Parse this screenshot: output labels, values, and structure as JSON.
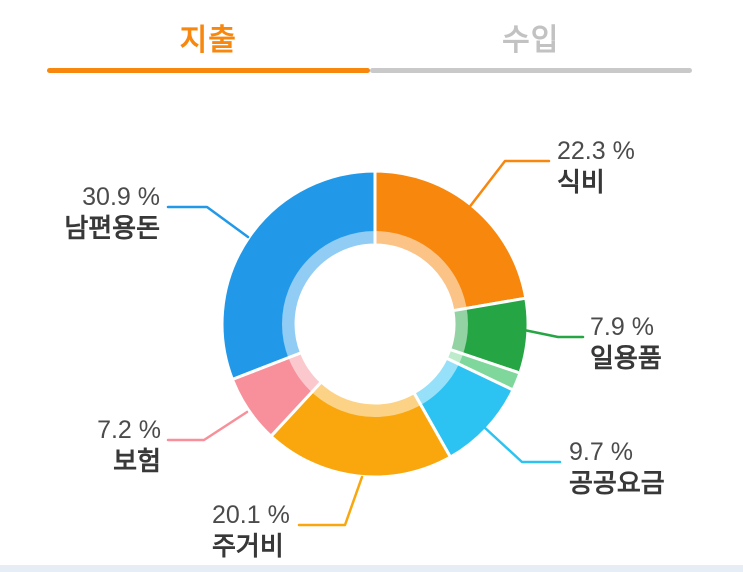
{
  "tabs": [
    {
      "label": "지출",
      "active": true
    },
    {
      "label": "수입",
      "active": false
    }
  ],
  "theme": {
    "accent": "#f8870d",
    "inactive_tab": "#c2c2c2",
    "tab_underline_inactive": "#c9c9c9",
    "pct_text": "#4b4b4b",
    "name_text": "#383838",
    "footer_strip": "#e7edf4",
    "slice_gap": "#ffffff"
  },
  "chart_data": {
    "type": "pie",
    "subtype": "donut",
    "title": "",
    "start_angle_deg": 0,
    "direction": "clockwise",
    "label_format": "{value} %",
    "legend_position": "callout-labels",
    "series": [
      {
        "label": "식비",
        "value": 22.3,
        "color": "#f8870d"
      },
      {
        "label": "일용품",
        "value": 7.9,
        "color": "#26a544"
      },
      {
        "label": "",
        "value": 1.9,
        "color": "#7fd79b"
      },
      {
        "label": "공공요금",
        "value": 9.7,
        "color": "#2cc3f2"
      },
      {
        "label": "주거비",
        "value": 20.1,
        "color": "#f9a70d"
      },
      {
        "label": "보험",
        "value": 7.2,
        "color": "#f7909a"
      },
      {
        "label": "남편용돈",
        "value": 30.9,
        "color": "#2199e8"
      }
    ]
  }
}
